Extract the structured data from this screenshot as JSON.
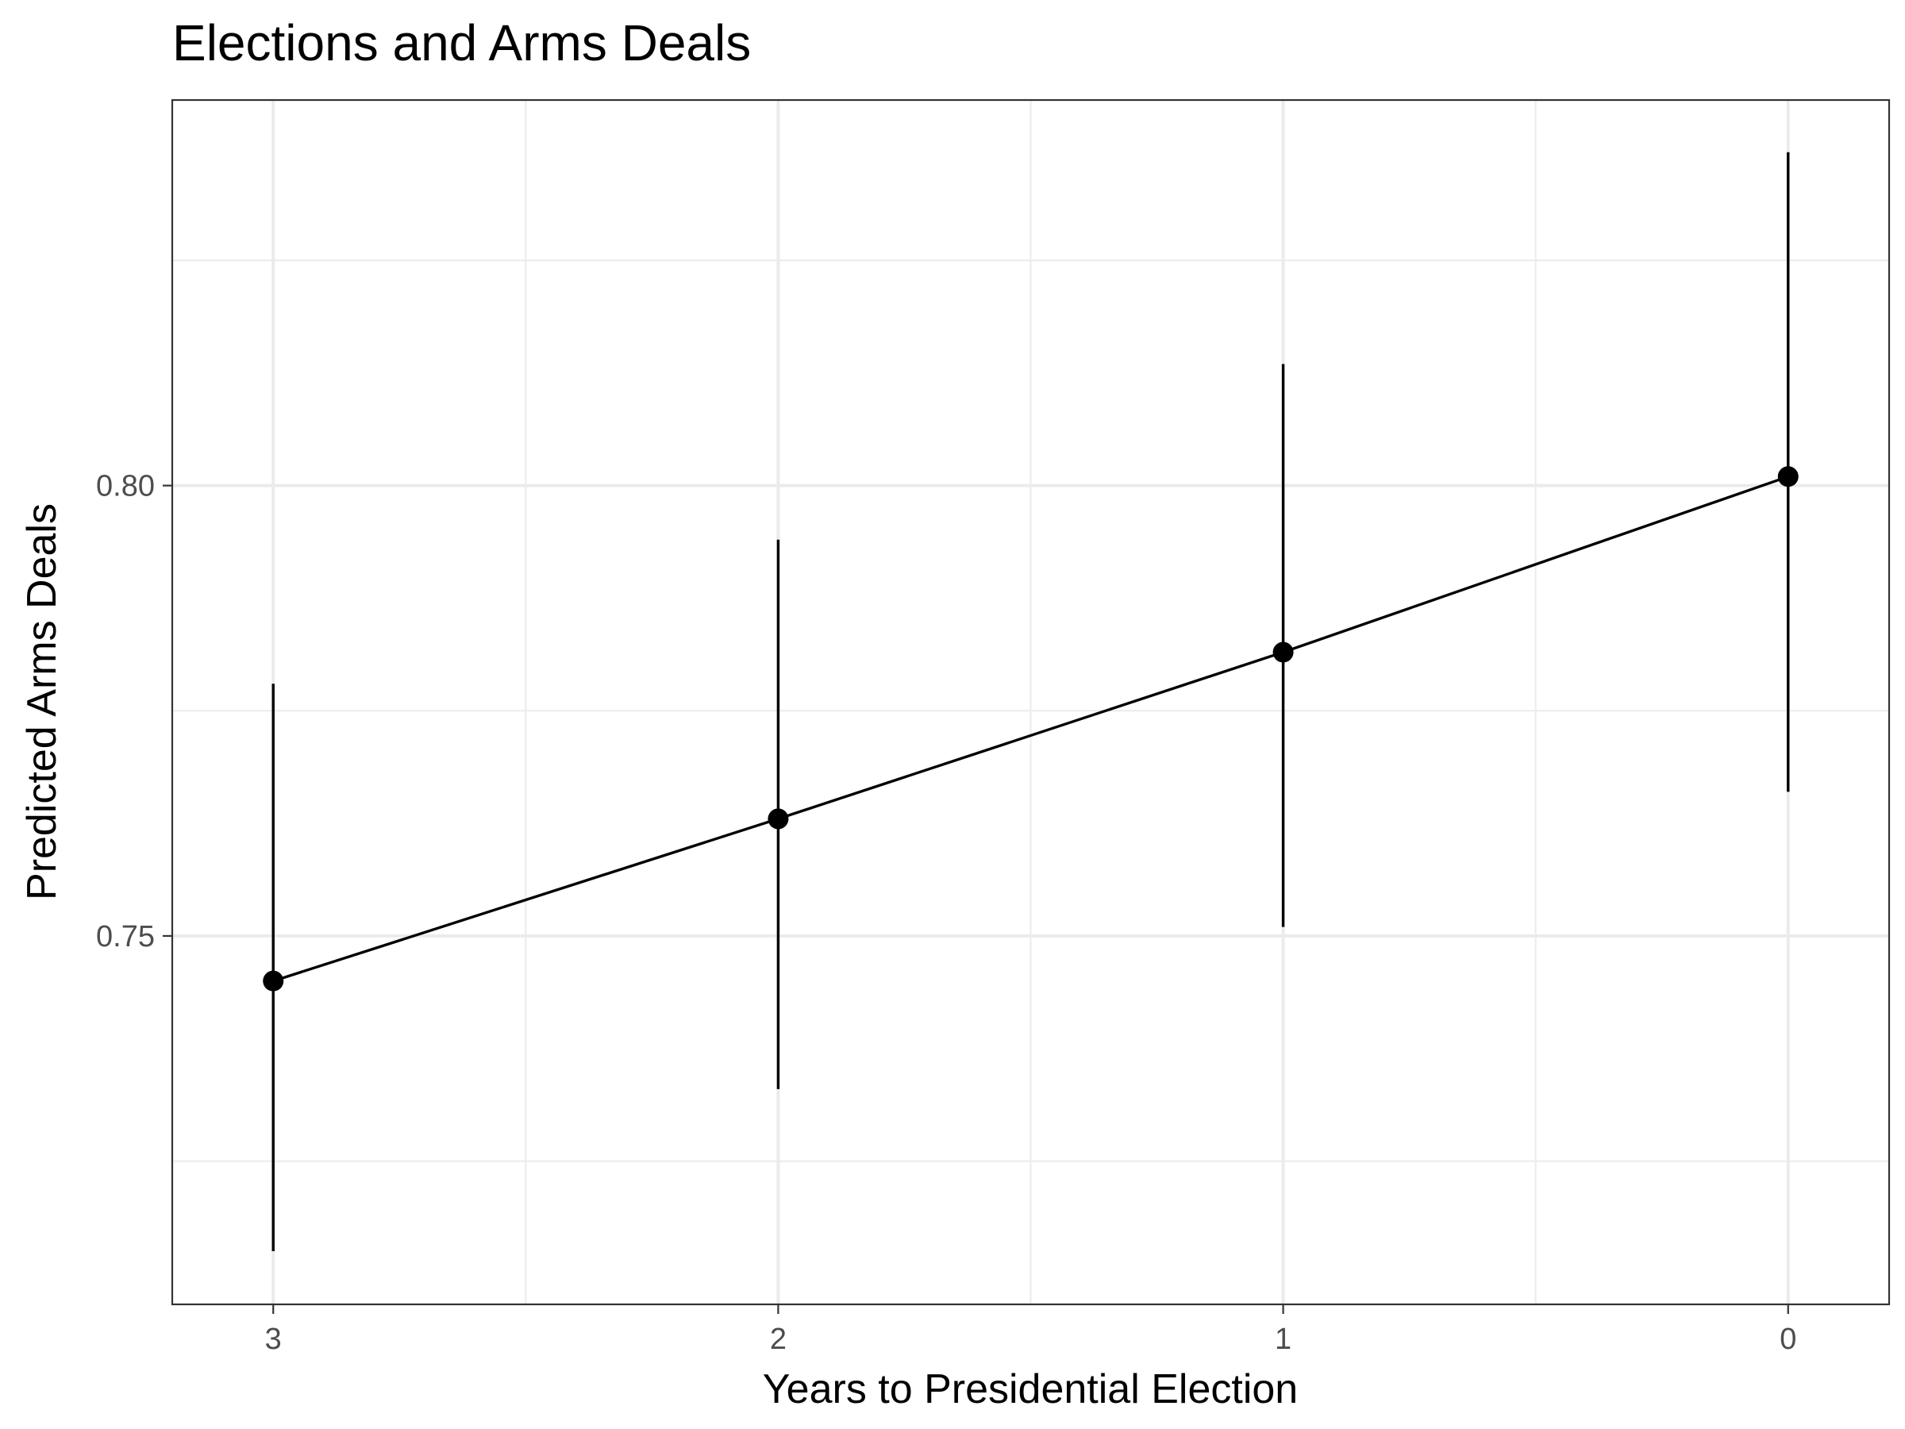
{
  "chart_data": {
    "type": "line",
    "title": "Elections and Arms Deals",
    "xlabel": "Years to Presidential Election",
    "ylabel": "Predicted Arms Deals",
    "x_tick_labels": [
      "3",
      "2",
      "1",
      "0"
    ],
    "y_tick_labels": [
      "0.75",
      "0.80"
    ],
    "x_reversed": true,
    "xlim": [
      3.2,
      -0.2
    ],
    "ylim": [
      0.7091,
      0.8428
    ],
    "grid": true,
    "legend": "none",
    "series": [
      {
        "x": [
          3,
          2,
          1,
          0
        ],
        "y": [
          0.745,
          0.763,
          0.7815,
          0.801
        ],
        "ci_low": [
          0.715,
          0.733,
          0.751,
          0.766
        ],
        "ci_high": [
          0.778,
          0.794,
          0.8135,
          0.837
        ],
        "color": "#000000"
      }
    ]
  }
}
